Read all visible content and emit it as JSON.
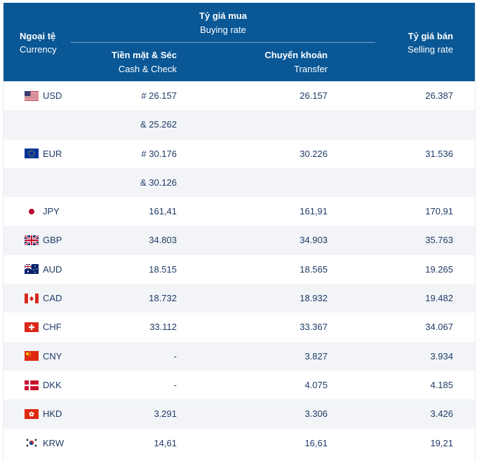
{
  "header": {
    "currency_vi": "Ngoại tệ",
    "currency_en": "Currency",
    "buying_vi": "Tỷ giá mua",
    "buying_en": "Buying rate",
    "cash_vi": "Tiền mặt & Séc",
    "cash_en": "Cash & Check",
    "transfer_vi": "Chuyển khoản",
    "transfer_en": "Transfer",
    "selling_vi": "Tỷ giá bán",
    "selling_en": "Selling rate"
  },
  "colors": {
    "header_bg": "#0a5796",
    "row_alt": "#f2f4f7",
    "text": "#1f3b66"
  },
  "rows": [
    {
      "code": "USD",
      "flag": "us-flag-icon",
      "cash": "# 26.157",
      "transfer": "26.157",
      "sell": "26.387"
    },
    {
      "code": "",
      "flag": "",
      "cash": "& 25.262",
      "transfer": "",
      "sell": ""
    },
    {
      "code": "EUR",
      "flag": "eu-flag-icon",
      "cash": "# 30.176",
      "transfer": "30.226",
      "sell": "31.536"
    },
    {
      "code": "",
      "flag": "",
      "cash": "& 30.126",
      "transfer": "",
      "sell": ""
    },
    {
      "code": "JPY",
      "flag": "jp-flag-icon",
      "cash": "161,41",
      "transfer": "161,91",
      "sell": "170,91"
    },
    {
      "code": "GBP",
      "flag": "gb-flag-icon",
      "cash": "34.803",
      "transfer": "34.903",
      "sell": "35.763"
    },
    {
      "code": "AUD",
      "flag": "au-flag-icon",
      "cash": "18.515",
      "transfer": "18.565",
      "sell": "19.265"
    },
    {
      "code": "CAD",
      "flag": "ca-flag-icon",
      "cash": "18.732",
      "transfer": "18.932",
      "sell": "19.482"
    },
    {
      "code": "CHF",
      "flag": "ch-flag-icon",
      "cash": "33.112",
      "transfer": "33.367",
      "sell": "34.067"
    },
    {
      "code": "CNY",
      "flag": "cn-flag-icon",
      "cash": "-",
      "transfer": "3.827",
      "sell": "3.934"
    },
    {
      "code": "DKK",
      "flag": "dk-flag-icon",
      "cash": "-",
      "transfer": "4.075",
      "sell": "4.185"
    },
    {
      "code": "HKD",
      "flag": "hk-flag-icon",
      "cash": "3.291",
      "transfer": "3.306",
      "sell": "3.426"
    },
    {
      "code": "KRW",
      "flag": "kr-flag-icon",
      "cash": "14,61",
      "transfer": "16,61",
      "sell": "19,21"
    }
  ]
}
